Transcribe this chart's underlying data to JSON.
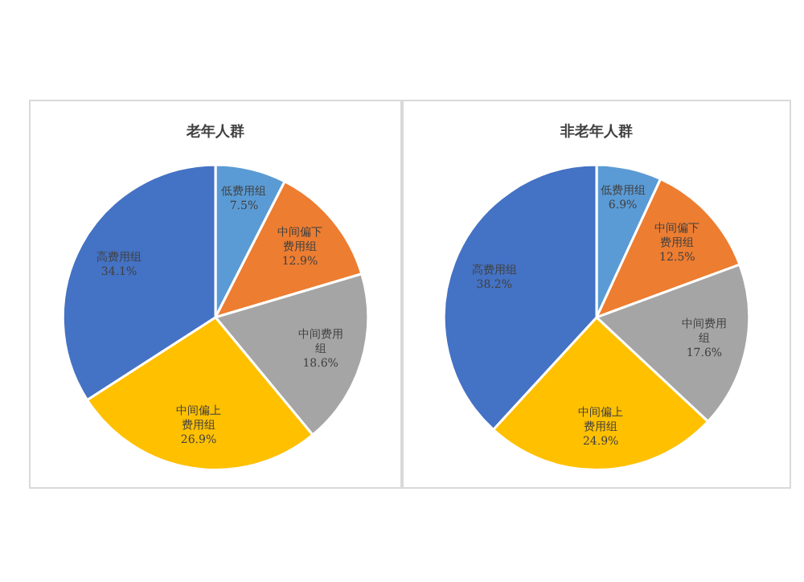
{
  "chart_data": [
    {
      "type": "pie",
      "title": "老年人群",
      "categories": [
        "低费用组",
        "中间偏下费用组",
        "中间费用组",
        "中间偏上费用组",
        "高费用组"
      ],
      "values": [
        7.5,
        12.9,
        18.6,
        26.9,
        34.1
      ],
      "value_labels": [
        "7.5%",
        "12.9%",
        "18.6%",
        "26.9%",
        "34.1%"
      ],
      "colors": [
        "#5b9bd5",
        "#ed7d31",
        "#a5a5a5",
        "#ffc000",
        "#4472c4"
      ],
      "legend": false
    },
    {
      "type": "pie",
      "title": "非老年人群",
      "categories": [
        "低费用组",
        "中间偏下费用组",
        "中间费用组",
        "中间偏上费用组",
        "高费用组"
      ],
      "values": [
        6.9,
        12.5,
        17.6,
        24.9,
        38.2
      ],
      "value_labels": [
        "6.9%",
        "12.5%",
        "17.6%",
        "24.9%",
        "38.2%"
      ],
      "colors": [
        "#5b9bd5",
        "#ed7d31",
        "#a5a5a5",
        "#ffc000",
        "#4472c4"
      ],
      "legend": false
    }
  ]
}
